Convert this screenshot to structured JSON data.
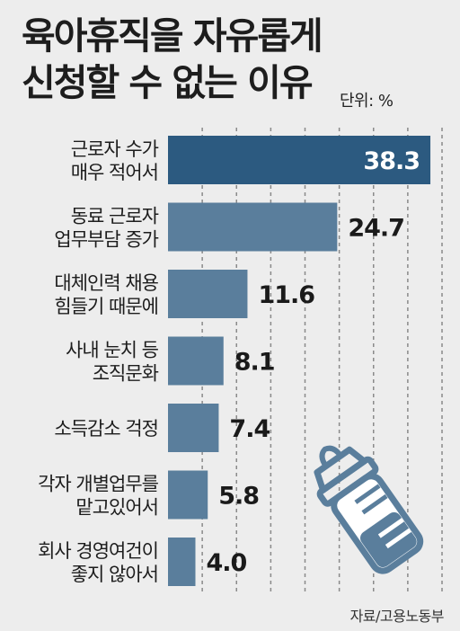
{
  "title_line1": "육아휴직을 자유롭게",
  "title_line2": "신청할 수 없는 이유",
  "unit": "단위: %",
  "source": "자료/고용노동부",
  "icon": "baby-bottle-icon",
  "colors": {
    "background": "#ededed",
    "bar_highlight": "#2c5a80",
    "bar": "#5a7e9c",
    "grid": "#8a8a8a",
    "value_highlight": "#ffffff",
    "value": "#1a1a1a"
  },
  "chart_data": {
    "type": "bar",
    "orientation": "horizontal",
    "title": "육아휴직을 자유롭게 신청할 수 없는 이유",
    "unit": "단위: %",
    "categories": [
      [
        "근로자 수가",
        "매우 적어서"
      ],
      [
        "동료 근로자",
        "업무부담 증가"
      ],
      [
        "대체인력 채용",
        "힘들기 때문에"
      ],
      [
        "사내 눈치 등",
        "조직문화"
      ],
      [
        "소득감소 걱정"
      ],
      [
        "각자 개별업무를",
        "맡고있어서"
      ],
      [
        "회사 경영여건이",
        "좋지 않아서"
      ]
    ],
    "values": [
      38.3,
      24.7,
      11.6,
      8.1,
      7.4,
      5.8,
      4.0
    ],
    "value_labels": [
      "38.3",
      "24.7",
      "11.6",
      "8.1",
      "7.4",
      "5.8",
      "4.0"
    ],
    "highlight_index": 0,
    "xlim": [
      0,
      40
    ],
    "grid": "vertical dashed",
    "legend": "none"
  }
}
